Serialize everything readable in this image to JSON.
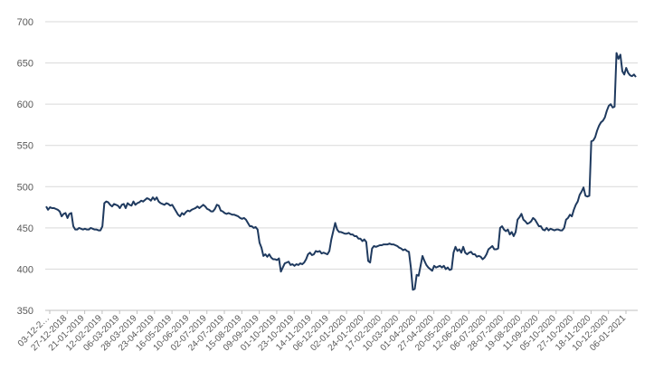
{
  "chart_data": {
    "type": "line",
    "title": "",
    "xlabel": "",
    "ylabel": "",
    "ylim": [
      350,
      700
    ],
    "y_ticks": [
      350,
      400,
      450,
      500,
      550,
      600,
      650,
      700
    ],
    "grid": "horizontal",
    "legend": "none",
    "line_color": "#1f3a5f",
    "x_tick_labels": [
      "03-12-2…",
      "27-12-2018",
      "21-01-2019",
      "12-02-2019",
      "06-03-2019",
      "28-03-2019",
      "23-04-2019",
      "16-05-2019",
      "10-06-2019",
      "02-07-2019",
      "24-07-2019",
      "15-08-2019",
      "09-09-2019",
      "01-10-2019",
      "23-10-2019",
      "14-11-2019",
      "06-12-2019",
      "02-01-2020",
      "24-01-2020",
      "17-02-2020",
      "10-03-2020",
      "01-04-2020",
      "27-04-2020",
      "20-05-2020",
      "12-06-2020",
      "06-07-2020",
      "28-07-2020",
      "19-08-2020",
      "11-09-2020",
      "05-10-2020",
      "27-10-2020",
      "18-11-2020",
      "10-12-2020",
      "06-01-2021"
    ],
    "series": [
      {
        "values": [
          476,
          472,
          475,
          474,
          474,
          473,
          472,
          470,
          464,
          467,
          468,
          462,
          467,
          468,
          452,
          448,
          448,
          450,
          449,
          448,
          449,
          448,
          448,
          450,
          449,
          448,
          448,
          447,
          447,
          452,
          480,
          482,
          481,
          478,
          476,
          479,
          478,
          477,
          474,
          478,
          479,
          474,
          480,
          478,
          477,
          482,
          478,
          480,
          481,
          483,
          482,
          484,
          486,
          485,
          483,
          487,
          484,
          487,
          482,
          480,
          479,
          478,
          480,
          479,
          477,
          478,
          474,
          470,
          466,
          464,
          468,
          466,
          469,
          471,
          470,
          472,
          473,
          474,
          476,
          474,
          476,
          478,
          476,
          473,
          472,
          470,
          470,
          473,
          478,
          477,
          471,
          470,
          468,
          467,
          468,
          467,
          466,
          466,
          465,
          464,
          462,
          461,
          462,
          460,
          456,
          452,
          452,
          450,
          451,
          448,
          432,
          426,
          416,
          418,
          415,
          418,
          414,
          412,
          412,
          411,
          413,
          397,
          402,
          407,
          408,
          409,
          405,
          406,
          404,
          406,
          405,
          407,
          406,
          408,
          412,
          418,
          420,
          417,
          418,
          422,
          421,
          422,
          419,
          420,
          419,
          418,
          422,
          436,
          446,
          456,
          448,
          445,
          445,
          444,
          443,
          443,
          444,
          442,
          442,
          440,
          440,
          437,
          437,
          434,
          436,
          433,
          410,
          408,
          425,
          428,
          427,
          428,
          429,
          429,
          430,
          430,
          430,
          431,
          430,
          430,
          429,
          428,
          426,
          425,
          423,
          424,
          422,
          421,
          402,
          375,
          376,
          393,
          392,
          404,
          416,
          410,
          405,
          402,
          400,
          398,
          404,
          402,
          403,
          404,
          402,
          404,
          400,
          402,
          399,
          400,
          420,
          427,
          422,
          424,
          420,
          427,
          420,
          418,
          420,
          421,
          418,
          418,
          415,
          416,
          415,
          412,
          414,
          418,
          424,
          426,
          428,
          424,
          424,
          425,
          450,
          452,
          448,
          446,
          448,
          442,
          445,
          440,
          445,
          460,
          463,
          467,
          460,
          458,
          455,
          456,
          458,
          462,
          460,
          456,
          452,
          452,
          448,
          447,
          450,
          447,
          449,
          448,
          447,
          448,
          448,
          447,
          447,
          450,
          460,
          462,
          466,
          464,
          472,
          478,
          482,
          490,
          494,
          499,
          489,
          488,
          489,
          555,
          556,
          560,
          568,
          574,
          578,
          580,
          584,
          592,
          598,
          600,
          596,
          597,
          662,
          655,
          660,
          640,
          636,
          644,
          638,
          635,
          634,
          636,
          633
        ]
      }
    ]
  }
}
